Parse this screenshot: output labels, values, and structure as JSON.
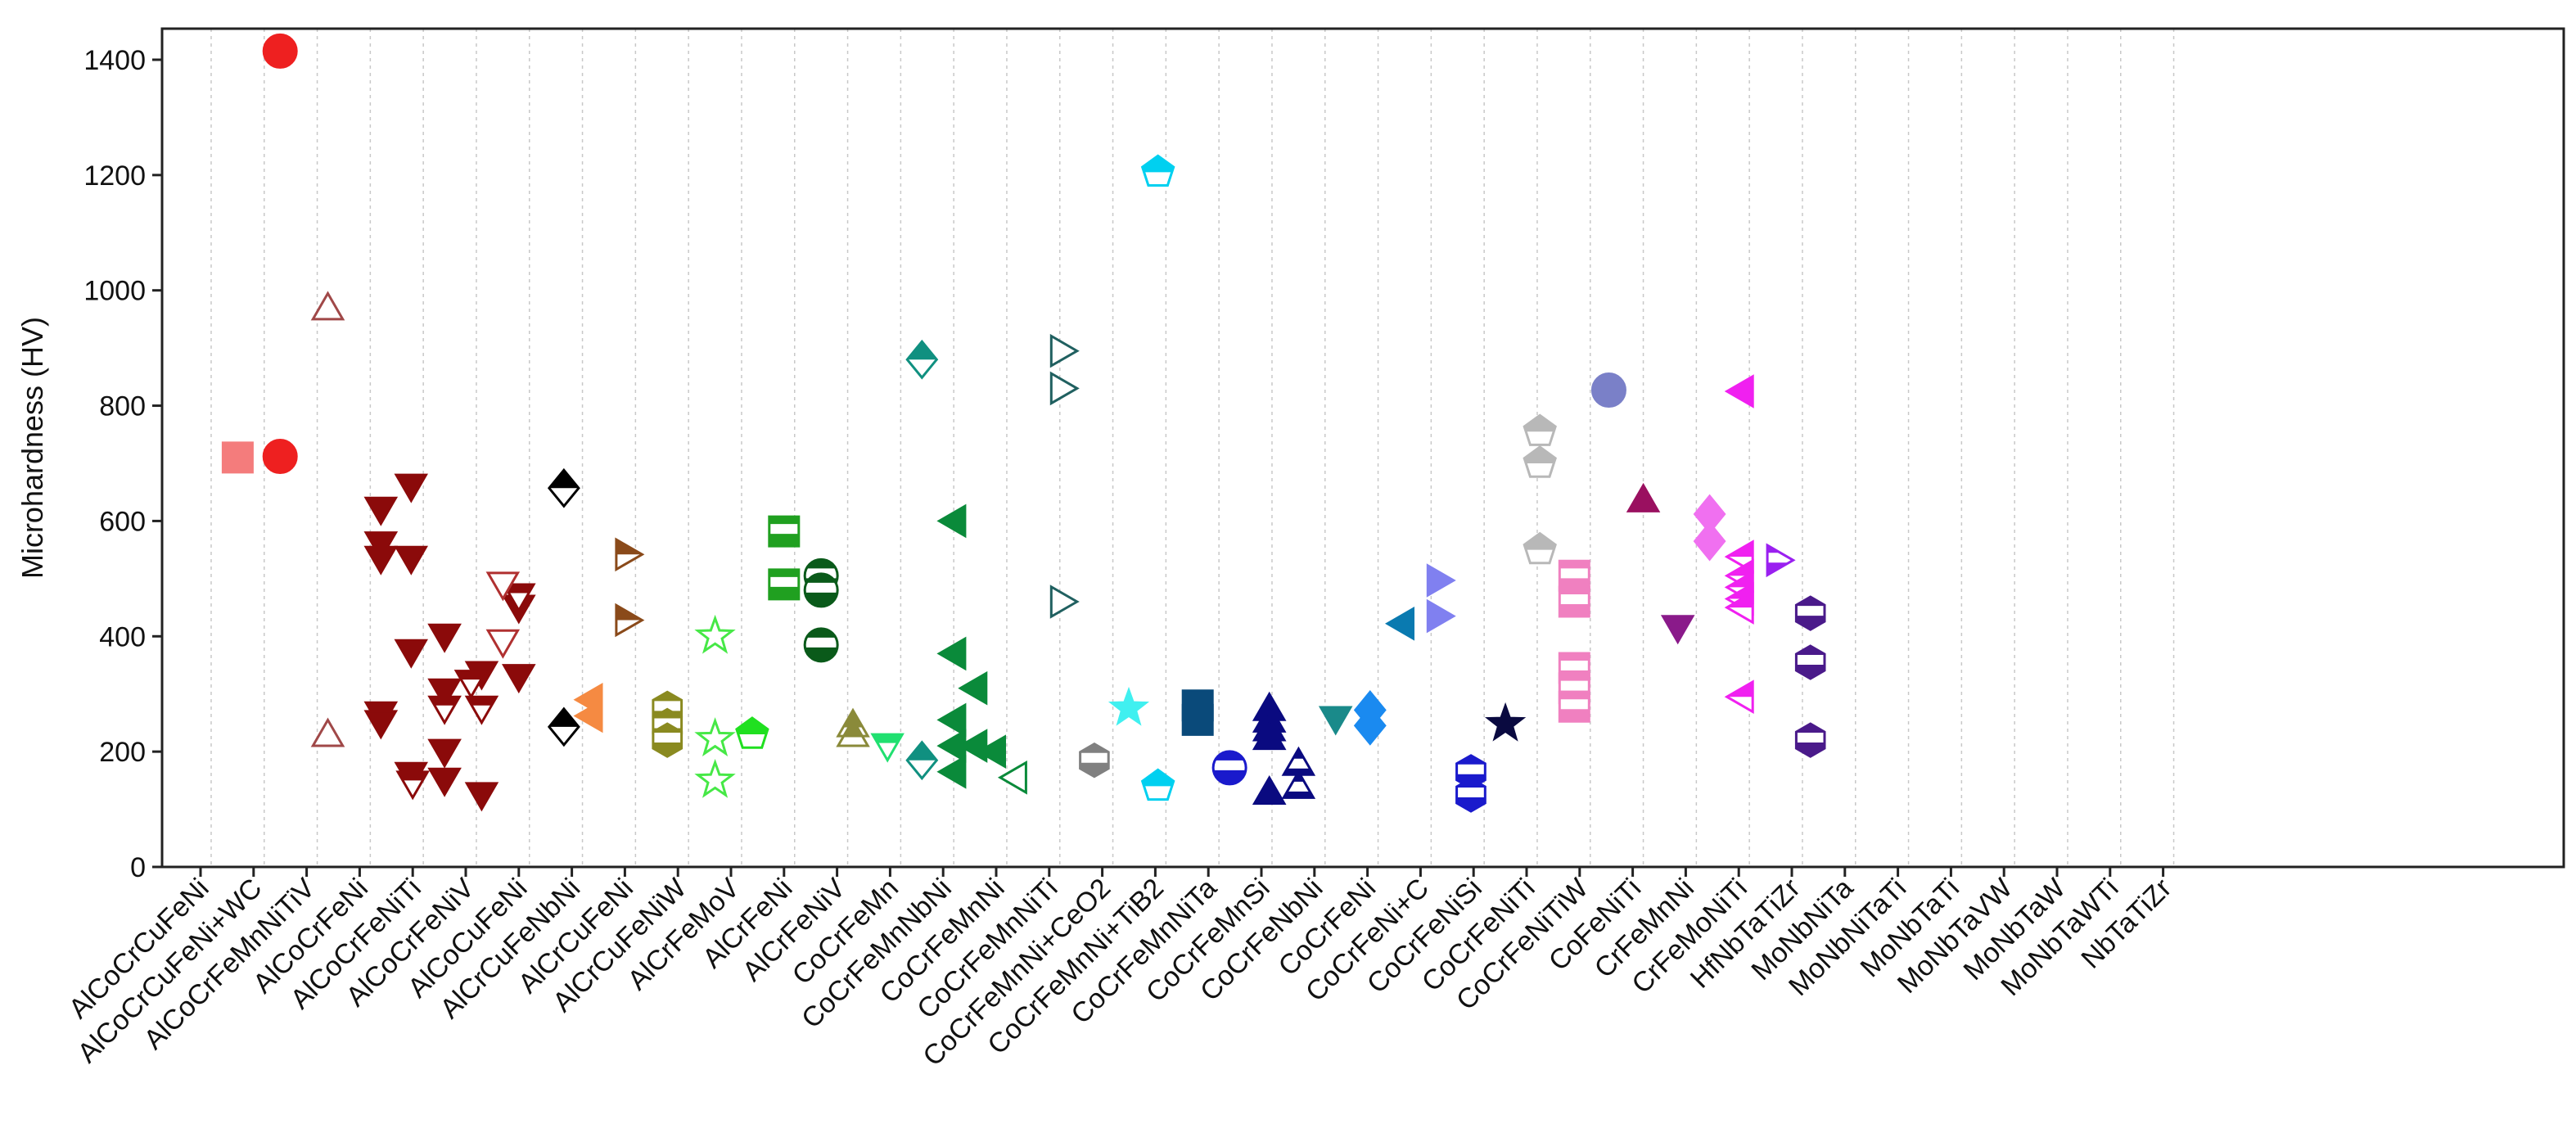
{
  "chart_data": {
    "type": "scatter",
    "title": "",
    "xlabel": "",
    "ylabel": "Microhardness (HV)",
    "ylim": [
      0,
      1450
    ],
    "yticks": [
      0,
      200,
      400,
      600,
      800,
      1000,
      1200,
      1400
    ],
    "grid": "vertical dashed",
    "categories": [
      "AlCoCrCuFeNi",
      "AlCoCrCuFeNi+WC",
      "AlCoCrFeMnNiTiV",
      "AlCoCrFeNi",
      "AlCoCrFeNiTi",
      "AlCoCrFeNiV",
      "AlCoCuFeNi",
      "AlCrCuFeNbNi",
      "AlCrCuFeNi",
      "AlCrCuFeNiW",
      "AlCrFeMoV",
      "AlCrFeNi",
      "AlCrFeNiV",
      "CoCrFeMn",
      "CoCrFeMnNbNi",
      "CoCrFeMnNi",
      "CoCrFeMnNiTi",
      "CoCrFeMnNi+CeO2",
      "CoCrFeMnNi+TiB2",
      "CoCrFeMnNiTa",
      "CoCrFeMnSi",
      "CoCrFeNbNi",
      "CoCrFeNi",
      "CoCrFeNi+C",
      "CoCrFeNiSi",
      "CoCrFeNiTi",
      "CoCrFeNiTiW",
      "CoFeNiTi",
      "CrFeMnNi",
      "CrFeMoNiTi",
      "HfNbTaTiZr",
      "MoNbNiTa",
      "MoNbNiTaTi",
      "MoNbTaTi",
      "MoNbTaVW",
      "MoNbTaW",
      "MoNbTaWTi",
      "NbTaTiZr"
    ],
    "series": [
      {
        "name": "AlCoCrCuFeNi",
        "color": "#f47c7c",
        "marker": "square",
        "fill": "full",
        "points": [
          {
            "x": 0.7,
            "y": 710
          }
        ]
      },
      {
        "name": "AlCoCrCuFeNi+WC",
        "color": "#ee2020",
        "marker": "circle",
        "fill": "full",
        "points": [
          {
            "x": 1.5,
            "y": 1415
          },
          {
            "x": 1.5,
            "y": 712
          }
        ]
      },
      {
        "name": "AlCoCrFeMnNiTiV",
        "color": "#a04848",
        "marker": "triangle-up",
        "fill": "top-open",
        "points": [
          {
            "x": 2.4,
            "y": 965
          },
          {
            "x": 2.4,
            "y": 225
          }
        ]
      },
      {
        "name": "AlCoCrFeNi (filled)",
        "color": "#8b0a0a",
        "marker": "triangle-down",
        "fill": "full",
        "points": [
          {
            "x": 3.4,
            "y": 625
          },
          {
            "x": 3.4,
            "y": 565
          },
          {
            "x": 3.4,
            "y": 540
          },
          {
            "x": 3.4,
            "y": 270
          },
          {
            "x": 3.4,
            "y": 255
          },
          {
            "x": 3.97,
            "y": 665
          },
          {
            "x": 3.97,
            "y": 540
          },
          {
            "x": 3.97,
            "y": 378
          },
          {
            "x": 3.97,
            "y": 165
          },
          {
            "x": 4.6,
            "y": 405
          },
          {
            "x": 4.6,
            "y": 310
          },
          {
            "x": 4.6,
            "y": 205
          },
          {
            "x": 4.6,
            "y": 155
          },
          {
            "x": 5.3,
            "y": 340
          },
          {
            "x": 5.3,
            "y": 130
          },
          {
            "x": 6.0,
            "y": 455
          },
          {
            "x": 6.0,
            "y": 335
          }
        ]
      },
      {
        "name": "AlCoCrFeNi (half)",
        "color": "#8b0a0a",
        "marker": "triangle-down",
        "fill": "top-half",
        "points": [
          {
            "x": 4.0,
            "y": 150
          },
          {
            "x": 4.6,
            "y": 280
          },
          {
            "x": 5.1,
            "y": 325
          },
          {
            "x": 5.3,
            "y": 280
          },
          {
            "x": 6.0,
            "y": 475
          }
        ]
      },
      {
        "name": "AlCoCrFeNi (open)",
        "color": "#b03030",
        "marker": "triangle-down",
        "fill": "none",
        "points": [
          {
            "x": 5.7,
            "y": 495
          },
          {
            "x": 5.7,
            "y": 395
          }
        ]
      },
      {
        "name": "AlCoCrFeNiTi",
        "color": "#000000",
        "marker": "diamond",
        "fill": "top-half",
        "points": [
          {
            "x": 6.85,
            "y": 657
          },
          {
            "x": 6.85,
            "y": 243
          }
        ]
      },
      {
        "name": "AlCoCrFeNiV",
        "color": "#f58a42",
        "marker": "triangle-left",
        "fill": "full",
        "points": [
          {
            "x": 7.4,
            "y": 290
          },
          {
            "x": 7.4,
            "y": 262
          }
        ]
      },
      {
        "name": "AlCoCuFeNi",
        "color": "#8a4a1a",
        "marker": "triangle-right",
        "fill": "top-half",
        "points": [
          {
            "x": 8.0,
            "y": 542
          },
          {
            "x": 8.0,
            "y": 428
          }
        ]
      },
      {
        "name": "AlCrCuFeNbNi",
        "color": "#8a8a20",
        "marker": "hexagon",
        "fill": "split",
        "points": [
          {
            "x": 8.8,
            "y": 275
          },
          {
            "x": 8.8,
            "y": 245
          },
          {
            "x": 8.8,
            "y": 220
          }
        ]
      },
      {
        "name": "AlCrCuFeNi",
        "color": "#46e846",
        "marker": "star",
        "fill": "none",
        "points": [
          {
            "x": 9.7,
            "y": 400
          },
          {
            "x": 9.7,
            "y": 222
          },
          {
            "x": 9.7,
            "y": 150
          }
        ]
      },
      {
        "name": "AlCrCuFeNiW",
        "color": "#20e020",
        "marker": "pentagon",
        "fill": "top-half",
        "points": [
          {
            "x": 10.4,
            "y": 230
          }
        ]
      },
      {
        "name": "AlCrFeMoV",
        "color": "#20a020",
        "marker": "square",
        "fill": "split",
        "points": [
          {
            "x": 11.0,
            "y": 582
          },
          {
            "x": 11.0,
            "y": 490
          }
        ]
      },
      {
        "name": "AlCrFeNi",
        "color": "#0a5a1a",
        "marker": "circle",
        "fill": "split",
        "points": [
          {
            "x": 11.7,
            "y": 505
          },
          {
            "x": 11.7,
            "y": 480
          },
          {
            "x": 11.7,
            "y": 385
          }
        ]
      },
      {
        "name": "AlCrFeNiV",
        "color": "#8a8a3a",
        "marker": "triangle-up",
        "fill": "top-half",
        "points": [
          {
            "x": 12.3,
            "y": 242
          },
          {
            "x": 12.3,
            "y": 225
          }
        ]
      },
      {
        "name": "CoCrFeMn",
        "color": "#20e070",
        "marker": "triangle-down",
        "fill": "top-half",
        "points": [
          {
            "x": 12.95,
            "y": 215
          }
        ]
      },
      {
        "name": "CoCrFeMnNbNi",
        "color": "#109080",
        "marker": "diamond",
        "fill": "top-half",
        "points": [
          {
            "x": 13.6,
            "y": 880
          },
          {
            "x": 13.6,
            "y": 185
          }
        ]
      },
      {
        "name": "CoCrFeMnNi (filled)",
        "color": "#0a8a3a",
        "marker": "triangle-left",
        "fill": "full",
        "points": [
          {
            "x": 14.25,
            "y": 600
          },
          {
            "x": 14.25,
            "y": 370
          },
          {
            "x": 14.25,
            "y": 255
          },
          {
            "x": 14.25,
            "y": 210
          },
          {
            "x": 14.25,
            "y": 165
          },
          {
            "x": 14.65,
            "y": 310
          },
          {
            "x": 14.65,
            "y": 210
          },
          {
            "x": 15.0,
            "y": 200
          }
        ]
      },
      {
        "name": "CoCrFeMnNi (open)",
        "color": "#0a8a3a",
        "marker": "triangle-left",
        "fill": "none",
        "points": [
          {
            "x": 15.4,
            "y": 155
          }
        ]
      },
      {
        "name": "CoCrFeMnNiTi",
        "color": "#206060",
        "marker": "triangle-right",
        "fill": "none",
        "points": [
          {
            "x": 16.2,
            "y": 895
          },
          {
            "x": 16.2,
            "y": 830
          },
          {
            "x": 16.2,
            "y": 460
          }
        ]
      },
      {
        "name": "CoCrFeMnNi+CeO2",
        "color": "#808080",
        "marker": "hexagon",
        "fill": "split",
        "points": [
          {
            "x": 16.85,
            "y": 185
          }
        ]
      },
      {
        "name": "CoCrFeMnNi+TiB2",
        "color": "#40f0f0",
        "marker": "star",
        "fill": "full",
        "points": [
          {
            "x": 17.5,
            "y": 275
          }
        ]
      },
      {
        "name": "CoCrFeMnNiTa",
        "color": "#00d0f0",
        "marker": "pentagon",
        "fill": "top-half",
        "points": [
          {
            "x": 18.05,
            "y": 1205
          },
          {
            "x": 18.05,
            "y": 140
          }
        ]
      },
      {
        "name": "CoCrFeMnSi",
        "color": "#0a4a7a",
        "marker": "square",
        "fill": "full",
        "points": [
          {
            "x": 18.8,
            "y": 280
          },
          {
            "x": 18.8,
            "y": 255
          }
        ]
      },
      {
        "name": "CoCrFeNbNi",
        "color": "#1a1acc",
        "marker": "circle",
        "fill": "split",
        "points": [
          {
            "x": 19.4,
            "y": 172
          }
        ]
      },
      {
        "name": "CoCrFeNi (filled)",
        "color": "#0a0a80",
        "marker": "triangle-up",
        "fill": "full",
        "points": [
          {
            "x": 20.15,
            "y": 270
          },
          {
            "x": 20.15,
            "y": 250
          },
          {
            "x": 20.15,
            "y": 235
          },
          {
            "x": 20.15,
            "y": 220
          },
          {
            "x": 20.15,
            "y": 125
          }
        ]
      },
      {
        "name": "CoCrFeNi (open)",
        "color": "#0a0a80",
        "marker": "triangle-up",
        "fill": "split",
        "points": [
          {
            "x": 20.7,
            "y": 175
          },
          {
            "x": 20.7,
            "y": 135
          }
        ]
      },
      {
        "name": "CoCrFeNi+C",
        "color": "#1a8a8a",
        "marker": "triangle-down",
        "fill": "full",
        "points": [
          {
            "x": 21.4,
            "y": 262
          }
        ]
      },
      {
        "name": "CoCrFeNiSi",
        "color": "#1a8af0",
        "marker": "diamond",
        "fill": "full",
        "points": [
          {
            "x": 22.05,
            "y": 272
          },
          {
            "x": 22.05,
            "y": 245
          }
        ]
      },
      {
        "name": "CoCrFeNiTi",
        "color": "#0a7ab0",
        "marker": "triangle-left",
        "fill": "full",
        "points": [
          {
            "x": 22.7,
            "y": 422
          }
        ]
      },
      {
        "name": "CoCrFeNiTiW",
        "color": "#8080f0",
        "marker": "triangle-right",
        "fill": "full",
        "points": [
          {
            "x": 23.3,
            "y": 497
          },
          {
            "x": 23.3,
            "y": 435
          }
        ]
      },
      {
        "name": "CoFeNiTi",
        "color": "#1a1acc",
        "marker": "hexagon",
        "fill": "split",
        "points": [
          {
            "x": 23.95,
            "y": 165
          },
          {
            "x": 23.95,
            "y": 125
          }
        ]
      },
      {
        "name": "CrFeMnNi",
        "color": "#0a0a40",
        "marker": "star",
        "fill": "full",
        "points": [
          {
            "x": 24.6,
            "y": 248
          }
        ]
      },
      {
        "name": "CrFeMoNiTi",
        "color": "#b8b8b8",
        "marker": "pentagon",
        "fill": "top-half",
        "points": [
          {
            "x": 25.25,
            "y": 755
          },
          {
            "x": 25.25,
            "y": 700
          },
          {
            "x": 25.25,
            "y": 550
          }
        ]
      },
      {
        "name": "HfNbTaTiZr",
        "color": "#f080c0",
        "marker": "square",
        "fill": "split",
        "points": [
          {
            "x": 25.9,
            "y": 505
          },
          {
            "x": 25.9,
            "y": 460
          },
          {
            "x": 25.9,
            "y": 345
          },
          {
            "x": 25.9,
            "y": 310
          },
          {
            "x": 25.9,
            "y": 278
          }
        ]
      },
      {
        "name": "MoNbNiTa",
        "color": "#7a80c8",
        "marker": "circle",
        "fill": "full",
        "points": [
          {
            "x": 26.55,
            "y": 827
          }
        ]
      },
      {
        "name": "MoNbNiTaTi",
        "color": "#9a1060",
        "marker": "triangle-up",
        "fill": "full",
        "points": [
          {
            "x": 27.2,
            "y": 632
          }
        ]
      },
      {
        "name": "MoNbTaTi",
        "color": "#8a1a8a",
        "marker": "triangle-down",
        "fill": "full",
        "points": [
          {
            "x": 27.85,
            "y": 420
          }
        ]
      },
      {
        "name": "MoNbTaVW",
        "color": "#f070f0",
        "marker": "diamond",
        "fill": "full",
        "points": [
          {
            "x": 28.45,
            "y": 612
          },
          {
            "x": 28.45,
            "y": 565
          }
        ]
      },
      {
        "name": "MoNbTaW (filled)",
        "color": "#f020f0",
        "marker": "triangle-left",
        "fill": "full",
        "points": [
          {
            "x": 29.1,
            "y": 825
          }
        ]
      },
      {
        "name": "MoNbTaW (half)",
        "color": "#f020f0",
        "marker": "triangle-left",
        "fill": "top-half",
        "points": [
          {
            "x": 29.1,
            "y": 538
          },
          {
            "x": 29.1,
            "y": 505
          },
          {
            "x": 29.1,
            "y": 485
          },
          {
            "x": 29.1,
            "y": 465
          },
          {
            "x": 29.1,
            "y": 450
          },
          {
            "x": 29.1,
            "y": 295
          }
        ]
      },
      {
        "name": "MoNbTaWTi",
        "color": "#9a20f0",
        "marker": "triangle-right",
        "fill": "split",
        "points": [
          {
            "x": 29.7,
            "y": 532
          }
        ]
      },
      {
        "name": "NbTaTiZr",
        "color": "#4a1a8a",
        "marker": "hexagon",
        "fill": "split",
        "points": [
          {
            "x": 30.35,
            "y": 440
          },
          {
            "x": 30.35,
            "y": 355
          },
          {
            "x": 30.35,
            "y": 220
          }
        ]
      }
    ]
  }
}
